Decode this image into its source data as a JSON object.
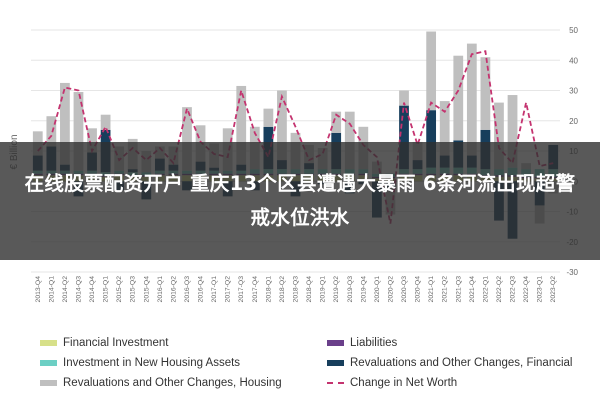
{
  "chart_data": {
    "type": "bar",
    "ylabel": "€ Billion",
    "ylim": [
      -30,
      50
    ],
    "yticks": [
      -30,
      -20,
      -10,
      0,
      10,
      20,
      30,
      40,
      50
    ],
    "grid": true,
    "legend_position": "bottom",
    "categories": [
      "2013-Q4",
      "2014-Q1",
      "2014-Q2",
      "2014-Q3",
      "2014-Q4",
      "2015-Q1",
      "2015-Q2",
      "2015-Q3",
      "2015-Q4",
      "2016-Q1",
      "2016-Q2",
      "2016-Q3",
      "2016-Q4",
      "2017-Q1",
      "2017-Q2",
      "2017-Q3",
      "2017-Q4",
      "2018-Q1",
      "2018-Q2",
      "2018-Q3",
      "2018-Q4",
      "2019-Q1",
      "2019-Q2",
      "2019-Q3",
      "2019-Q4",
      "2020-Q1",
      "2020-Q2",
      "2020-Q3",
      "2020-Q4",
      "2021-Q1",
      "2021-Q2",
      "2021-Q3",
      "2021-Q4",
      "2022-Q1",
      "2022-Q2",
      "2022-Q3",
      "2022-Q4",
      "2023-Q1",
      "2023-Q2"
    ],
    "series": [
      {
        "name": "Financial Investment",
        "type": "bar",
        "color": "#d7e089",
        "values": [
          2,
          2,
          2,
          2,
          2,
          1.5,
          2,
          1.5,
          1.5,
          2,
          2,
          2,
          2,
          2,
          2,
          2,
          2,
          2,
          2,
          2,
          2,
          2,
          2,
          2,
          2,
          1,
          1,
          2,
          2,
          2,
          2,
          2,
          2,
          1.5,
          1.5,
          1.5,
          1,
          1,
          1
        ]
      },
      {
        "name": "Liabilities",
        "type": "bar",
        "color": "#6a3f8a",
        "values": [
          0.5,
          0.5,
          0.5,
          0.5,
          0.5,
          0.5,
          0.5,
          0.5,
          0.5,
          0.5,
          0.5,
          0.5,
          0.5,
          0.5,
          0.5,
          0.5,
          0.5,
          0.5,
          0.5,
          0.5,
          0.5,
          0.5,
          0.5,
          0.5,
          0.5,
          0.5,
          0.5,
          0.5,
          0.5,
          0.5,
          0.5,
          0.5,
          0.5,
          0.5,
          0.5,
          0.5,
          0.5,
          0.5,
          0.5
        ]
      },
      {
        "name": "Investment in New Housing Assets",
        "type": "bar",
        "color": "#6ccfc4",
        "values": [
          1,
          1,
          1,
          1,
          1,
          1,
          1,
          1,
          1,
          1,
          1,
          1,
          1,
          1,
          1,
          1,
          1.5,
          1.5,
          1.5,
          1.5,
          1.5,
          1.5,
          1.5,
          1.5,
          1.5,
          1,
          1,
          1.5,
          1.5,
          2,
          2,
          2,
          2,
          2,
          2,
          2.5,
          2.5,
          2.5,
          2.5
        ]
      },
      {
        "name": "Revaluations and Other Changes, Financial",
        "type": "bar",
        "color": "#173e5c",
        "values": [
          5,
          8,
          2,
          -5,
          6,
          14,
          -3,
          1,
          -6,
          4,
          2,
          -3,
          3,
          1,
          -5,
          2,
          -3,
          14,
          3,
          -5,
          2,
          -1,
          12,
          -4,
          -1,
          -12,
          -2,
          21,
          3,
          19,
          4,
          9,
          4,
          13,
          -13,
          -19,
          0,
          -8,
          8
        ]
      },
      {
        "name": "Revaluations and Other Changes, Housing",
        "type": "bar",
        "color": "#bfbfbf",
        "values": [
          8,
          10,
          27,
          26,
          8,
          5,
          8,
          10,
          7,
          4,
          6,
          21,
          12,
          8,
          14,
          26,
          14,
          6,
          23,
          12,
          6,
          7,
          7,
          19,
          14,
          4,
          -9,
          5,
          6,
          26,
          18,
          28,
          37,
          24,
          22,
          24,
          2,
          -6,
          -4
        ]
      },
      {
        "name": "Change in Net Worth",
        "type": "line",
        "color": "#c4336f",
        "dashed": true,
        "values": [
          10,
          15,
          31,
          30,
          10,
          18,
          7,
          11,
          7,
          11,
          6,
          24,
          13,
          9,
          8,
          30,
          16,
          8,
          28,
          18,
          7,
          9,
          22,
          19,
          12,
          8,
          -14,
          26,
          12,
          26,
          23,
          30,
          42,
          43,
          11,
          6,
          26,
          5,
          6
        ]
      }
    ]
  }
}
